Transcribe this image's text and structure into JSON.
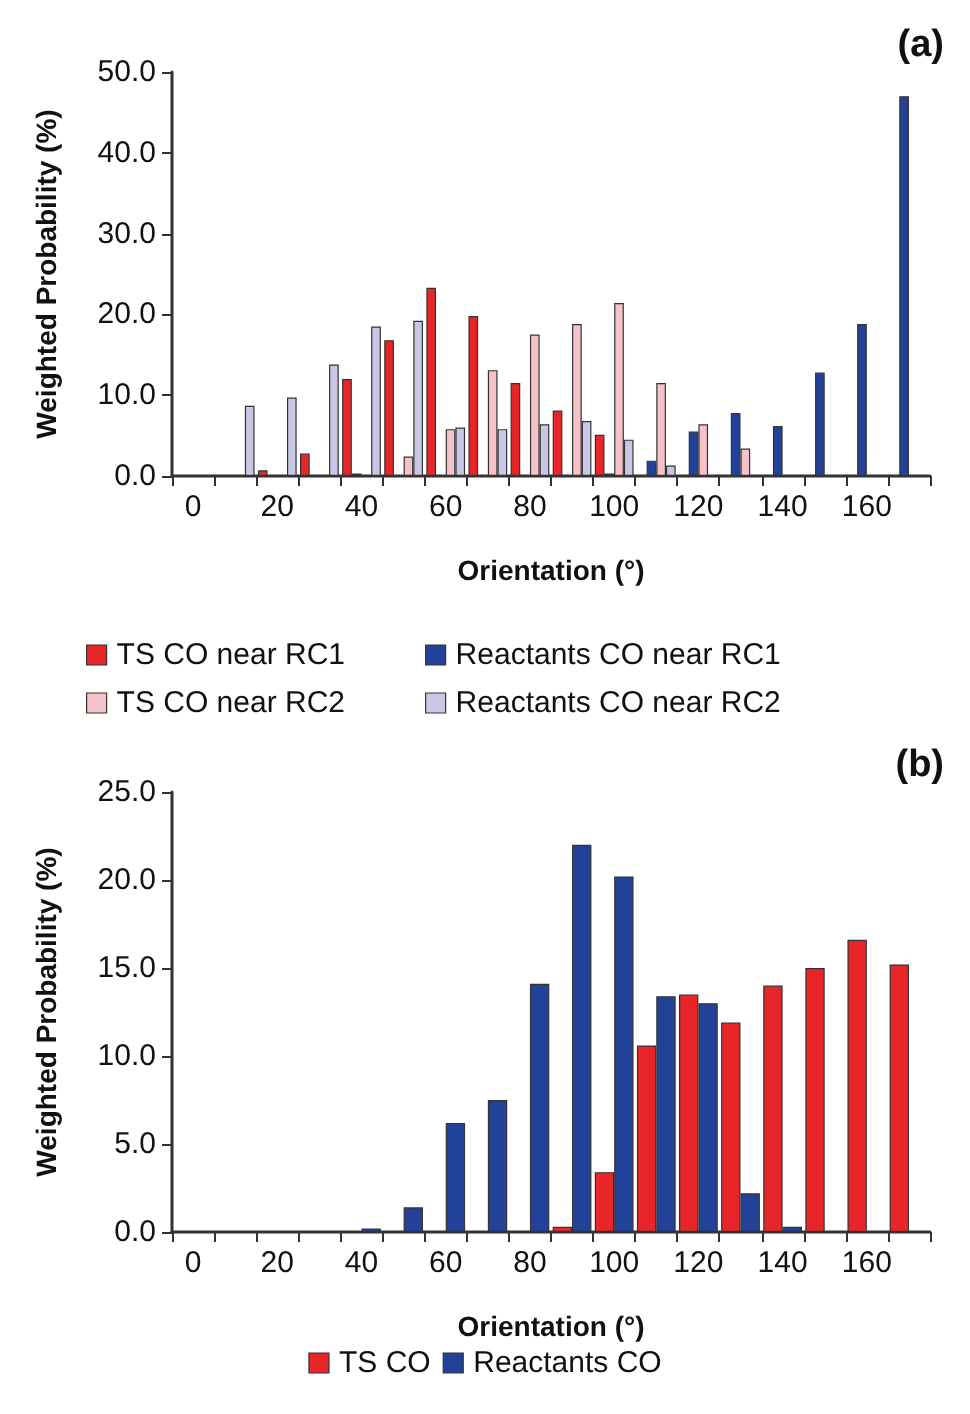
{
  "chart_data": [
    {
      "type": "bar",
      "title": "(a)",
      "xlabel": "Orientation (°)",
      "ylabel": "Weighted Probability (%)",
      "categories": [
        "0",
        null,
        "20",
        null,
        "40",
        null,
        "60",
        null,
        "80",
        null,
        "100",
        null,
        "120",
        null,
        "140",
        null,
        "160",
        null
      ],
      "series": [
        {
          "name": "TS CO near RC1",
          "color": "#e8262a",
          "values": [
            0,
            0,
            0.7,
            2.8,
            12.0,
            16.8,
            23.3,
            19.8,
            11.5,
            8.1,
            5.1,
            0,
            0,
            0,
            0,
            0,
            0,
            0
          ]
        },
        {
          "name": "Reactants CO near RC1",
          "color": "#22429a",
          "values": [
            0,
            0,
            0,
            0,
            0.3,
            0,
            0,
            0,
            0,
            0,
            0.3,
            1.9,
            5.5,
            7.8,
            6.2,
            12.8,
            18.8,
            47.0
          ]
        },
        {
          "name": "TS CO near RC2",
          "color": "#f4c2c8",
          "values": [
            0,
            0,
            0,
            0,
            0,
            2.4,
            5.8,
            13.1,
            17.5,
            18.8,
            21.4,
            11.5,
            6.4,
            3.4,
            null,
            0,
            0,
            0
          ]
        },
        {
          "name": "Reactants CO near RC2",
          "color": "#c8c8e6",
          "values": [
            null,
            8.7,
            9.7,
            13.8,
            18.5,
            19.2,
            6.0,
            5.8,
            6.4,
            6.8,
            4.5,
            1.3,
            0,
            0,
            0,
            0,
            0,
            0
          ]
        }
      ],
      "ylim": [
        0,
        50
      ],
      "yticks": [
        {
          "value": 0,
          "label": "0.0"
        },
        {
          "value": 10,
          "label": "10.0"
        },
        {
          "value": 20,
          "label": "20.0"
        },
        {
          "value": 30,
          "label": "30.0"
        },
        {
          "value": 40,
          "label": "40.0"
        },
        {
          "value": 50,
          "label": "50.0"
        }
      ],
      "grid": false,
      "legend": "bottom"
    },
    {
      "type": "bar",
      "title": "(b)",
      "xlabel": "Orientation (°)",
      "ylabel": "Weighted Probability (%)",
      "categories": [
        "0",
        null,
        "20",
        null,
        "40",
        null,
        "60",
        null,
        "80",
        null,
        "100",
        null,
        "120",
        null,
        "140",
        null,
        "160",
        null
      ],
      "series": [
        {
          "name": "TS CO",
          "color": "#e8262a",
          "values": [
            0,
            0,
            0,
            0,
            0,
            0,
            0,
            0,
            null,
            0.3,
            3.4,
            10.6,
            13.5,
            11.9,
            14.0,
            15.0,
            16.6,
            15.2
          ]
        },
        {
          "name": "Reactants CO",
          "color": "#22429a",
          "values": [
            0,
            0,
            0,
            0,
            0.2,
            1.4,
            6.2,
            7.5,
            14.1,
            22.0,
            20.2,
            13.4,
            13.0,
            2.2,
            0.3,
            0,
            0,
            0
          ]
        }
      ],
      "ylim": [
        0,
        25
      ],
      "yticks": [
        {
          "value": 0,
          "label": "0.0"
        },
        {
          "value": 5,
          "label": "5.0"
        },
        {
          "value": 10,
          "label": "10.0"
        },
        {
          "value": 15,
          "label": "15.0"
        },
        {
          "value": 20,
          "label": "20.0"
        },
        {
          "value": 25,
          "label": "25.0"
        }
      ],
      "grid": false,
      "legend": "bottom"
    }
  ]
}
